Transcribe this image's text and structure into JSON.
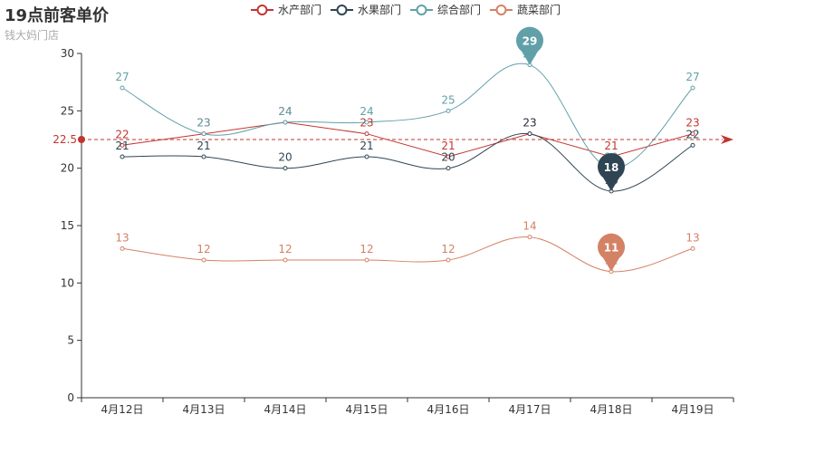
{
  "title": "19点前客单价",
  "subtitle": "钱大妈门店",
  "chart_data": {
    "type": "line",
    "title": "19点前客单价",
    "subtitle": "钱大妈门店",
    "categories": [
      "4月12日",
      "4月13日",
      "4月14日",
      "4月15日",
      "4月16日",
      "4月17日",
      "4月18日",
      "4月19日"
    ],
    "y_ticks": [
      "0",
      "5",
      "10",
      "15",
      "20",
      "25",
      "30"
    ],
    "ylim": [
      0,
      30
    ],
    "series": [
      {
        "name": "水产部门",
        "color": "#c23531",
        "smooth": false,
        "values": [
          22,
          23,
          24,
          23,
          21,
          23,
          21,
          23
        ],
        "labels": [
          "22",
          "23",
          "24",
          "23",
          "21",
          "23",
          "21",
          "23"
        ]
      },
      {
        "name": "水果部门",
        "color": "#2f4554",
        "smooth": true,
        "values": [
          21,
          21,
          20,
          21,
          20,
          23,
          18,
          22
        ],
        "labels": [
          "21",
          "21",
          "20",
          "21",
          "20",
          "23",
          "18",
          "22"
        ]
      },
      {
        "name": "综合部门",
        "color": "#61a0a8",
        "smooth": true,
        "values": [
          27,
          23,
          24,
          24,
          25,
          29,
          20,
          27
        ],
        "labels": [
          "27",
          "23",
          "24",
          "24",
          "25",
          "29",
          "20",
          "27"
        ]
      },
      {
        "name": "蔬菜部门",
        "color": "#d48265",
        "smooth": true,
        "values": [
          13,
          12,
          12,
          12,
          12,
          14,
          11,
          13
        ],
        "labels": [
          "13",
          "12",
          "12",
          "12",
          "12",
          "14",
          "11",
          "13"
        ]
      }
    ],
    "mark_points": [
      {
        "series": "综合部门",
        "category": "4月17日",
        "value": 29,
        "label": "29",
        "color": "#61a0a8"
      },
      {
        "series": "水果部门",
        "category": "4月18日",
        "value": 18,
        "label": "18",
        "color": "#2f4554"
      },
      {
        "series": "蔬菜部门",
        "category": "4月18日",
        "value": 11,
        "label": "11",
        "color": "#d48265"
      }
    ],
    "mark_line": {
      "series": "水产部门",
      "type": "average",
      "value": 22.5,
      "label": "22.5",
      "color": "#c23531"
    }
  }
}
